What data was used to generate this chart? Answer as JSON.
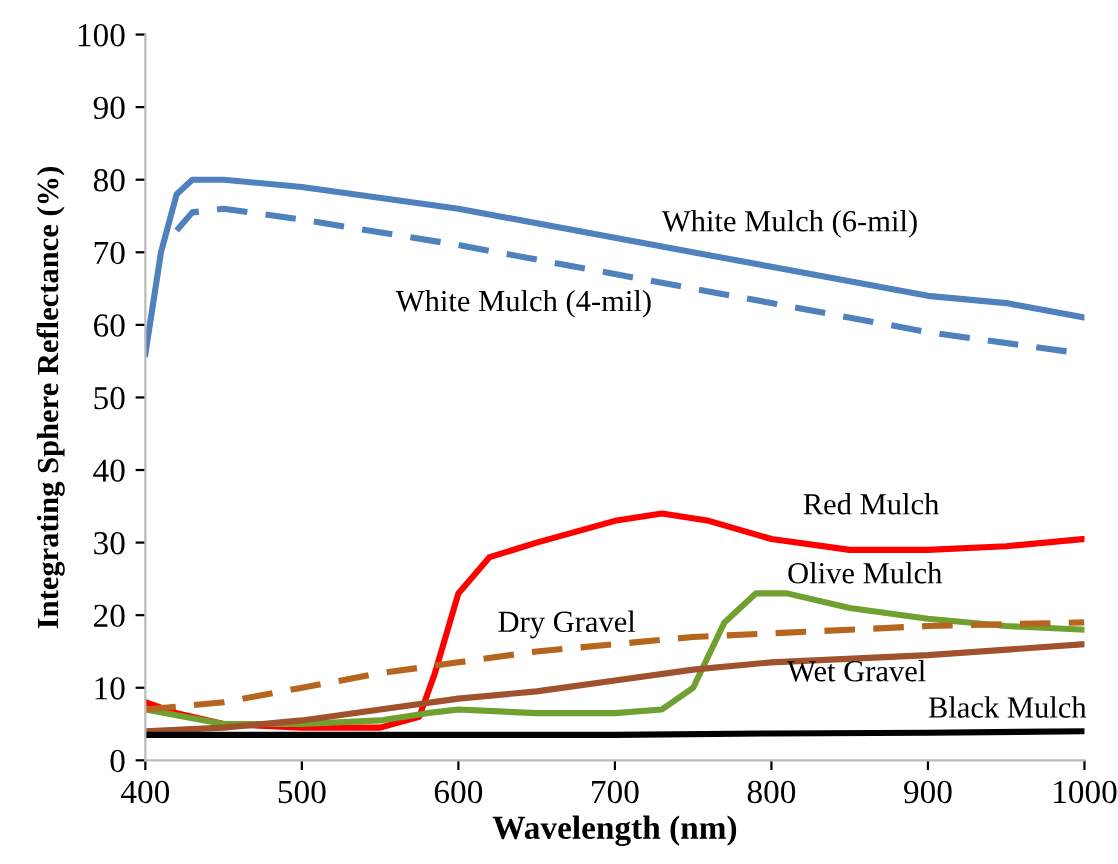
{
  "chart_data": {
    "type": "line",
    "xlabel": "Wavelength (nm)",
    "ylabel": "Integrating Sphere Reflectance (%)",
    "xlim": [
      400,
      1000
    ],
    "xticks": [
      400,
      500,
      600,
      700,
      800,
      900,
      1000
    ],
    "ylim": [
      0,
      100
    ],
    "yticks": [
      0,
      10,
      20,
      30,
      40,
      50,
      60,
      70,
      80,
      90,
      100
    ],
    "grid": false,
    "legend": false,
    "marker": "none",
    "series": [
      {
        "name": "White Mulch (6-mil)",
        "color": "#4f81bd",
        "line_style": "solid",
        "x": [
          400,
          410,
          420,
          430,
          450,
          500,
          600,
          700,
          800,
          900,
          950,
          1000
        ],
        "values": [
          56,
          70,
          78,
          80,
          80,
          79,
          76,
          72,
          68,
          64,
          63,
          61
        ]
      },
      {
        "name": "White Mulch (4-mil)",
        "color": "#4f81bd",
        "line_style": "dashed",
        "x": [
          420,
          430,
          450,
          500,
          600,
          700,
          800,
          900,
          1000
        ],
        "values": [
          73,
          75.5,
          76,
          74.5,
          71,
          67,
          63,
          59,
          56
        ]
      },
      {
        "name": "Red Mulch",
        "color": "#ff0000",
        "line_style": "solid",
        "x": [
          400,
          420,
          450,
          500,
          550,
          575,
          585,
          600,
          620,
          650,
          700,
          730,
          760,
          800,
          850,
          900,
          950,
          1000
        ],
        "values": [
          8,
          6.5,
          5,
          4.5,
          4.5,
          6,
          12,
          23,
          28,
          30,
          33,
          34,
          33,
          30.5,
          29,
          29,
          29.5,
          30.5
        ]
      },
      {
        "name": "Olive Mulch",
        "color": "#70a030",
        "line_style": "solid",
        "x": [
          400,
          450,
          500,
          550,
          580,
          600,
          650,
          700,
          730,
          750,
          770,
          790,
          810,
          850,
          900,
          950,
          1000
        ],
        "values": [
          7,
          5,
          5,
          5.5,
          6.5,
          7,
          6.5,
          6.5,
          7,
          10,
          19,
          23,
          23,
          21,
          19.5,
          18.5,
          18
        ]
      },
      {
        "name": "Dry Gravel",
        "color": "#b5651d",
        "line_style": "dashed",
        "x": [
          400,
          450,
          500,
          550,
          600,
          650,
          700,
          750,
          800,
          900,
          1000
        ],
        "values": [
          7,
          8,
          10,
          12,
          13.5,
          15,
          16,
          17,
          17.5,
          18.5,
          19
        ]
      },
      {
        "name": "Wet Gravel",
        "color": "#a0522d",
        "line_style": "solid",
        "x": [
          400,
          450,
          500,
          550,
          600,
          650,
          700,
          750,
          800,
          900,
          1000
        ],
        "values": [
          4,
          4.5,
          5.5,
          7,
          8.5,
          9.5,
          11,
          12.5,
          13.5,
          14.5,
          16
        ]
      },
      {
        "name": "Black Mulch",
        "color": "#000000",
        "line_style": "solid",
        "x": [
          400,
          500,
          600,
          700,
          800,
          900,
          1000
        ],
        "values": [
          3.5,
          3.5,
          3.5,
          3.5,
          3.7,
          3.8,
          4
        ]
      }
    ]
  }
}
